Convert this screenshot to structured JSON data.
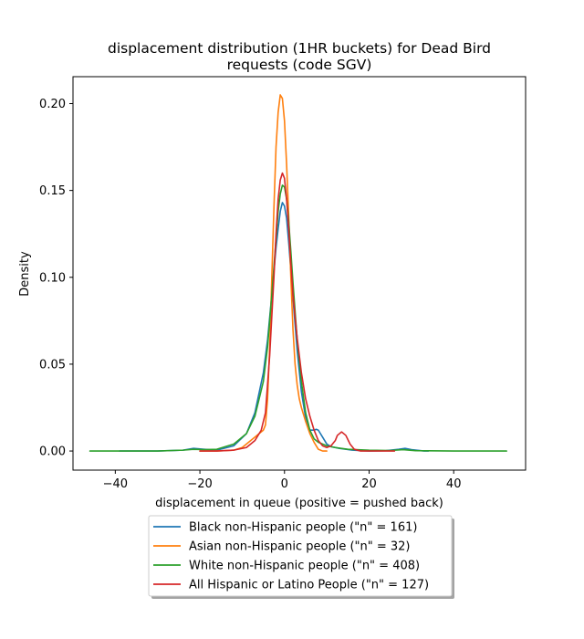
{
  "chart_data": {
    "type": "line",
    "title": [
      "displacement distribution (1HR buckets) for Dead Bird",
      "requests (code SGV)"
    ],
    "xlabel": "displacement in queue (positive = pushed back)",
    "ylabel": "Density",
    "xlim": [
      -50,
      57
    ],
    "ylim": [
      -0.011,
      0.2155
    ],
    "xticks": [
      -40,
      -20,
      0,
      20,
      40
    ],
    "xtick_labels": [
      "−40",
      "−20",
      "0",
      "20",
      "40"
    ],
    "yticks": [
      0.0,
      0.05,
      0.1,
      0.15,
      0.2
    ],
    "ytick_labels": [
      "0.00",
      "0.05",
      "0.10",
      "0.15",
      "0.20"
    ],
    "grid": false,
    "legend_position": "below-center",
    "series": [
      {
        "name": "Black non-Hispanic people (\"n\" = 161)",
        "color": "#1f77b4",
        "x": [
          -39,
          -30,
          -24,
          -21.5,
          -19,
          -16,
          -12,
          -9,
          -7,
          -5,
          -4,
          -3,
          -2,
          -1.5,
          -1,
          -0.5,
          0,
          0.5,
          1,
          1.5,
          2,
          3,
          4,
          5,
          6,
          7,
          7.5,
          8,
          9,
          10,
          11,
          13,
          16,
          20,
          24,
          27,
          28.5,
          30,
          33,
          34
        ],
        "y": [
          0,
          0,
          0.0005,
          0.0015,
          0.001,
          0.0005,
          0.003,
          0.01,
          0.022,
          0.045,
          0.064,
          0.09,
          0.117,
          0.128,
          0.138,
          0.143,
          0.141,
          0.134,
          0.12,
          0.104,
          0.088,
          0.058,
          0.034,
          0.019,
          0.012,
          0.012,
          0.0125,
          0.012,
          0.008,
          0.004,
          0.0025,
          0.0015,
          0.0005,
          0,
          0.0002,
          0.001,
          0.0015,
          0.0008,
          0,
          0
        ]
      },
      {
        "name": "Asian non-Hispanic people (\"n\" = 32)",
        "color": "#ff7f0e",
        "x": [
          -20,
          -16,
          -12,
          -10,
          -8,
          -7,
          -6,
          -5,
          -4.5,
          -4,
          -3.5,
          -3,
          -2.5,
          -2,
          -1.5,
          -1,
          -0.5,
          0,
          0.5,
          1,
          1.5,
          2,
          2.5,
          3,
          3.5,
          4,
          5,
          6,
          7,
          8,
          9,
          10
        ],
        "y": [
          0,
          0,
          0.0005,
          0.002,
          0.006,
          0.008,
          0.01,
          0.012,
          0.015,
          0.03,
          0.06,
          0.1,
          0.14,
          0.175,
          0.195,
          0.205,
          0.203,
          0.19,
          0.165,
          0.135,
          0.1,
          0.07,
          0.05,
          0.038,
          0.03,
          0.025,
          0.017,
          0.01,
          0.005,
          0.001,
          0,
          0
        ]
      },
      {
        "name": "White non-Hispanic people (\"n\" = 408)",
        "color": "#2ca02c",
        "x": [
          -46,
          -30,
          -24,
          -21.5,
          -19,
          -16,
          -12,
          -9,
          -7,
          -5,
          -4,
          -3,
          -2,
          -1.5,
          -1,
          -0.5,
          0,
          0.5,
          1,
          1.5,
          2,
          3,
          4,
          5,
          6,
          7,
          8,
          10,
          12,
          15,
          20,
          25,
          28,
          31,
          40,
          52.5
        ],
        "y": [
          0,
          0,
          0.0005,
          0.001,
          0.0008,
          0.001,
          0.004,
          0.01,
          0.02,
          0.04,
          0.06,
          0.09,
          0.122,
          0.138,
          0.148,
          0.153,
          0.152,
          0.145,
          0.132,
          0.115,
          0.097,
          0.064,
          0.04,
          0.022,
          0.012,
          0.007,
          0.005,
          0.003,
          0.002,
          0.001,
          0.0005,
          0.0003,
          0.0008,
          0.0002,
          0,
          0
        ]
      },
      {
        "name": "All Hispanic or Latino People (\"n\" = 127)",
        "color": "#d62728",
        "x": [
          -20,
          -16,
          -12,
          -9,
          -7,
          -5.5,
          -4.5,
          -3.5,
          -2.5,
          -2,
          -1.5,
          -1,
          -0.5,
          0,
          0.5,
          1,
          1.5,
          2,
          3,
          4,
          5,
          6,
          7,
          8,
          9,
          10,
          11,
          12,
          12.5,
          13.5,
          14.5,
          15.5,
          16.5,
          18,
          20,
          24,
          26
        ],
        "y": [
          0,
          0,
          0.0005,
          0.002,
          0.006,
          0.012,
          0.022,
          0.055,
          0.1,
          0.125,
          0.145,
          0.156,
          0.16,
          0.157,
          0.145,
          0.128,
          0.108,
          0.09,
          0.065,
          0.045,
          0.03,
          0.02,
          0.012,
          0.006,
          0.003,
          0.002,
          0.003,
          0.006,
          0.009,
          0.011,
          0.009,
          0.004,
          0.001,
          0,
          0,
          0,
          0
        ]
      }
    ]
  }
}
